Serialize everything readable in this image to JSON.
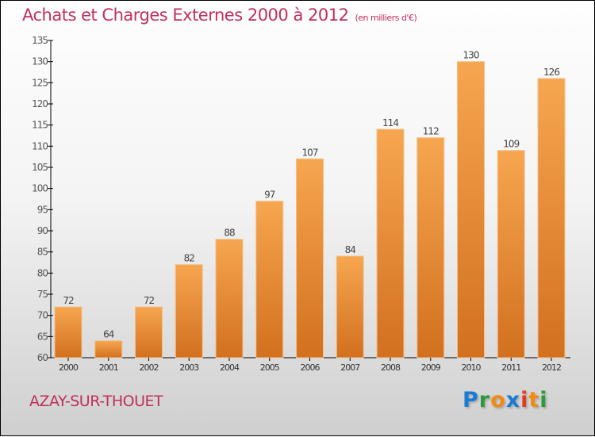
{
  "title": "Achats et Charges Externes 2000 à 2012",
  "subtitle": "(en milliers d'€)",
  "city": "AZAY-SUR-THOUET",
  "logo": "Proxiti",
  "colors": {
    "bar_top": "#f7a650",
    "bar_bottom": "#d9751f",
    "title": "#c0305a"
  },
  "chart_data": {
    "type": "bar",
    "title": "Achats et Charges Externes 2000 à 2012",
    "ylabel": "en milliers d'€",
    "categories": [
      "2000",
      "2001",
      "2002",
      "2003",
      "2004",
      "2005",
      "2006",
      "2007",
      "2008",
      "2009",
      "2010",
      "2011",
      "2012"
    ],
    "values": [
      72,
      64,
      72,
      82,
      88,
      97,
      107,
      84,
      114,
      112,
      130,
      109,
      126
    ],
    "ylim": [
      60,
      135
    ],
    "yticks": [
      60,
      65,
      70,
      75,
      80,
      85,
      90,
      95,
      100,
      105,
      110,
      115,
      120,
      125,
      130,
      135
    ],
    "grid": false
  }
}
